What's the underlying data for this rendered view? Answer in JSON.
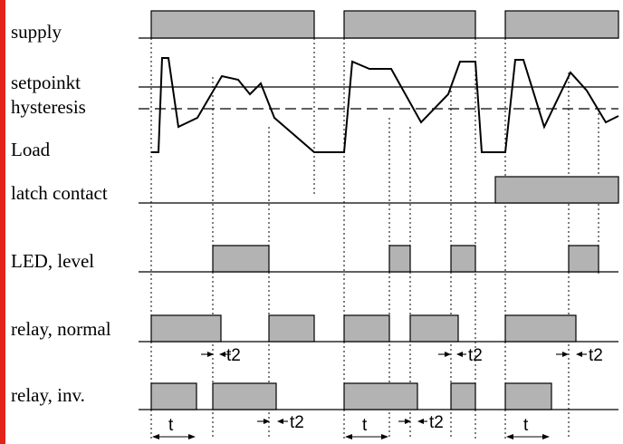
{
  "labels": {
    "supply": "supply",
    "setpoint": "setpoinkt",
    "hysteresis": "hysteresis",
    "load": "Load",
    "latch": "latch contact",
    "led": "LED, level",
    "relay_normal": "relay, normal",
    "relay_inv": "relay, inv."
  },
  "timing": {
    "t2": "t2",
    "t": "t"
  },
  "colors": {
    "left_bar": "#e2231a",
    "pulse_fill": "#b3b3b3",
    "line": "#000000"
  }
}
